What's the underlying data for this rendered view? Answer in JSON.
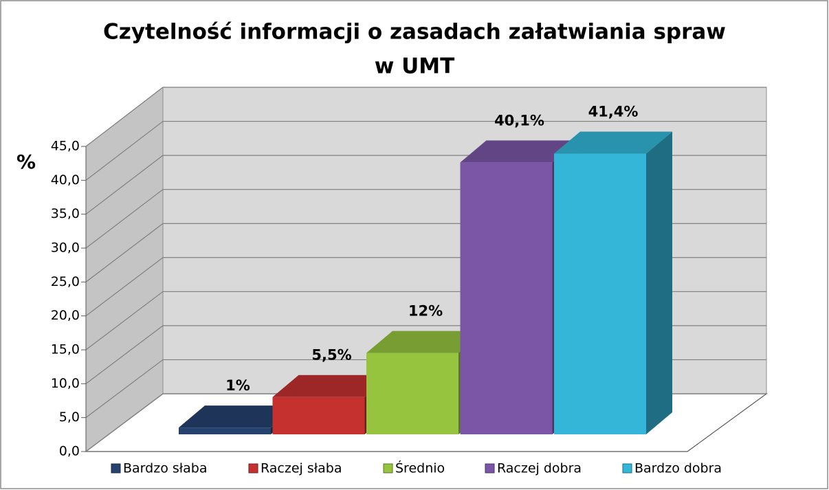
{
  "chart_data": {
    "type": "bar3d",
    "title": [
      "Czytelność informacji o zasadach załatwiania spraw",
      "w UMT"
    ],
    "y_label": "%",
    "categories": [
      "Bardzo słaba",
      "Raczej słaba",
      "Średnio",
      "Raczej dobra",
      "Bardzo dobra"
    ],
    "values": [
      1,
      5.5,
      12,
      40.1,
      41.4
    ],
    "value_labels": [
      "1%",
      "5,5%",
      "12%",
      "40,1%",
      "41,4%"
    ],
    "colors": [
      "#25426f",
      "#c4312f",
      "#96c43f",
      "#7b56a6",
      "#33b6d8"
    ],
    "ylim": [
      0,
      45
    ],
    "yticks": [
      {
        "value": 0,
        "label": "0,0"
      },
      {
        "value": 5,
        "label": "5,0"
      },
      {
        "value": 10,
        "label": "10,0"
      },
      {
        "value": 15,
        "label": "15,0"
      },
      {
        "value": 20,
        "label": "20,0"
      },
      {
        "value": 25,
        "label": "25,0"
      },
      {
        "value": 30,
        "label": "30,0"
      },
      {
        "value": 35,
        "label": "35,0"
      },
      {
        "value": 40,
        "label": "40,0"
      },
      {
        "value": 45,
        "label": "45,0"
      }
    ],
    "grid": true
  }
}
